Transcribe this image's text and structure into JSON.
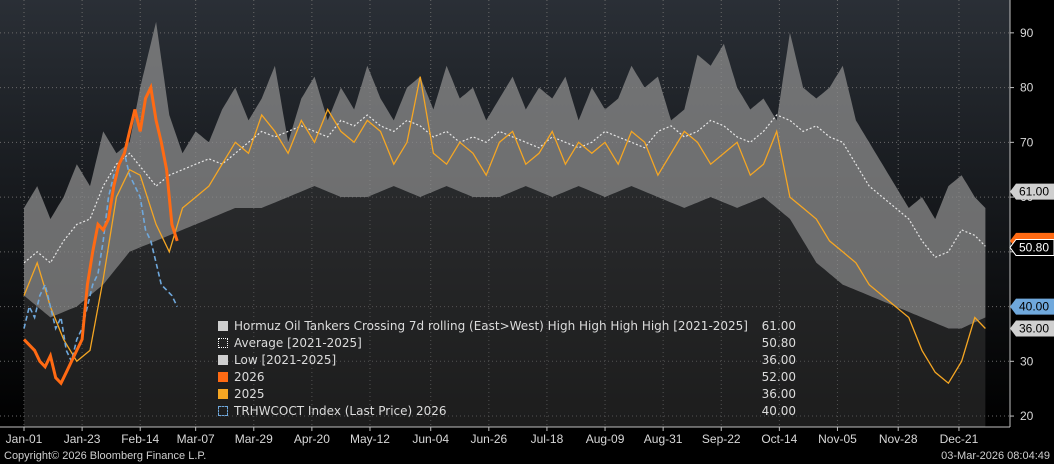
{
  "chart_data": {
    "type": "area",
    "title": "Hormuz Oil Tankers Crossing 7d rolling (East>West) High High High High [2021-2025]",
    "ylim": [
      18,
      96
    ],
    "y_ticks": [
      20,
      30,
      40,
      50,
      60,
      70,
      80,
      90
    ],
    "y_axis_position": "right",
    "x_days": 365,
    "x_ticks": [
      {
        "label": "Jan-01",
        "day": 0
      },
      {
        "label": "Jan-23",
        "day": 22
      },
      {
        "label": "Feb-14",
        "day": 44
      },
      {
        "label": "Mar-07",
        "day": 65
      },
      {
        "label": "Mar-29",
        "day": 87
      },
      {
        "label": "Apr-20",
        "day": 109
      },
      {
        "label": "May-12",
        "day": 131
      },
      {
        "label": "Jun-04",
        "day": 154
      },
      {
        "label": "Jun-26",
        "day": 176
      },
      {
        "label": "Jul-18",
        "day": 198
      },
      {
        "label": "Aug-09",
        "day": 220
      },
      {
        "label": "Aug-31",
        "day": 242
      },
      {
        "label": "Sep-22",
        "day": 264
      },
      {
        "label": "Oct-14",
        "day": 286
      },
      {
        "label": "Nov-05",
        "day": 308
      },
      {
        "label": "Nov-28",
        "day": 331
      },
      {
        "label": "Dec-21",
        "day": 354
      }
    ],
    "grid": true,
    "legend_position": "bottom-center",
    "series": [
      {
        "name": "Hormuz Oil Tankers Crossing 7d rolling (East>West) High High High High [2021-2025]",
        "role": "high",
        "color": "#8c8c8c",
        "x": [
          0,
          5,
          10,
          15,
          20,
          25,
          30,
          35,
          40,
          44,
          50,
          55,
          60,
          65,
          70,
          75,
          80,
          85,
          90,
          95,
          100,
          105,
          110,
          115,
          120,
          125,
          130,
          135,
          140,
          145,
          150,
          155,
          160,
          165,
          170,
          175,
          180,
          185,
          190,
          195,
          200,
          205,
          210,
          215,
          220,
          225,
          230,
          235,
          240,
          245,
          250,
          255,
          260,
          265,
          270,
          275,
          280,
          285,
          290,
          295,
          300,
          305,
          310,
          315,
          320,
          325,
          330,
          335,
          340,
          345,
          350,
          355,
          360,
          364
        ],
        "values": [
          58,
          62,
          56,
          60,
          66,
          62,
          72,
          68,
          70,
          80,
          92,
          75,
          68,
          72,
          70,
          76,
          80,
          74,
          78,
          84,
          70,
          78,
          82,
          74,
          80,
          76,
          84,
          78,
          74,
          80,
          82,
          76,
          84,
          78,
          80,
          74,
          78,
          82,
          76,
          80,
          78,
          82,
          74,
          80,
          76,
          78,
          84,
          80,
          82,
          74,
          76,
          86,
          84,
          88,
          80,
          76,
          78,
          74,
          90,
          80,
          78,
          80,
          84,
          74,
          70,
          66,
          62,
          58,
          60,
          56,
          62,
          64,
          60,
          58
        ]
      },
      {
        "name": "Low  [2021-2025]",
        "role": "low",
        "color": "#3a3a3a",
        "x": [
          0,
          10,
          20,
          30,
          40,
          50,
          60,
          70,
          80,
          90,
          100,
          110,
          120,
          130,
          140,
          150,
          160,
          170,
          180,
          190,
          200,
          210,
          220,
          230,
          240,
          250,
          260,
          270,
          280,
          290,
          300,
          310,
          320,
          330,
          340,
          350,
          355,
          364
        ],
        "values": [
          42,
          38,
          40,
          44,
          50,
          52,
          54,
          56,
          58,
          58,
          60,
          62,
          60,
          60,
          62,
          60,
          62,
          60,
          60,
          62,
          60,
          62,
          60,
          62,
          60,
          58,
          60,
          58,
          60,
          56,
          48,
          44,
          42,
          40,
          38,
          36,
          36,
          38
        ],
        "last_value": 36.0
      },
      {
        "name": "Average  [2021-2025]",
        "role": "average",
        "color": "#e6e6e6",
        "x": [
          0,
          5,
          10,
          15,
          20,
          25,
          30,
          35,
          40,
          45,
          50,
          55,
          60,
          65,
          70,
          75,
          80,
          85,
          90,
          95,
          100,
          105,
          110,
          115,
          120,
          125,
          130,
          135,
          140,
          145,
          150,
          155,
          160,
          165,
          170,
          175,
          180,
          185,
          190,
          195,
          200,
          205,
          210,
          215,
          220,
          225,
          230,
          235,
          240,
          245,
          250,
          255,
          260,
          265,
          270,
          275,
          280,
          285,
          290,
          295,
          300,
          305,
          310,
          315,
          320,
          325,
          330,
          335,
          340,
          345,
          350,
          355,
          360,
          364
        ],
        "values": [
          48,
          50,
          48,
          52,
          55,
          56,
          62,
          66,
          68,
          65,
          62,
          64,
          65,
          66,
          67,
          66,
          68,
          70,
          72,
          71,
          72,
          73,
          72,
          71,
          74,
          73,
          75,
          73,
          72,
          74,
          73,
          71,
          72,
          70,
          71,
          70,
          72,
          71,
          70,
          69,
          71,
          70,
          69,
          70,
          72,
          71,
          70,
          69,
          72,
          73,
          71,
          72,
          74,
          73,
          71,
          70,
          72,
          75,
          74,
          72,
          73,
          71,
          70,
          66,
          62,
          60,
          58,
          56,
          52,
          49,
          50,
          54,
          53,
          51
        ],
        "last_value": 50.8
      },
      {
        "name": "2026",
        "role": "current",
        "color": "#ff6a13",
        "x": [
          0,
          2,
          4,
          6,
          8,
          10,
          12,
          14,
          16,
          18,
          20,
          22,
          24,
          26,
          28,
          30,
          32,
          34,
          36,
          38,
          40,
          42,
          44,
          46,
          48,
          50,
          52,
          54,
          56,
          58
        ],
        "values": [
          34,
          33,
          32,
          30,
          29,
          31,
          27,
          26,
          28,
          30,
          32,
          34,
          44,
          50,
          55,
          54,
          56,
          62,
          66,
          68,
          72,
          76,
          72,
          78,
          80,
          74,
          70,
          65,
          55,
          52
        ],
        "last_value": 52.0
      },
      {
        "name": "2025",
        "role": "prior",
        "color": "#f5a623",
        "x": [
          0,
          5,
          10,
          15,
          20,
          25,
          30,
          35,
          40,
          44,
          50,
          55,
          60,
          65,
          70,
          75,
          80,
          85,
          90,
          95,
          100,
          105,
          110,
          115,
          120,
          125,
          130,
          135,
          140,
          145,
          150,
          155,
          160,
          165,
          170,
          175,
          180,
          185,
          190,
          195,
          200,
          205,
          210,
          215,
          220,
          225,
          230,
          235,
          240,
          245,
          250,
          255,
          260,
          265,
          270,
          275,
          280,
          285,
          290,
          295,
          300,
          305,
          310,
          315,
          320,
          325,
          330,
          335,
          340,
          345,
          350,
          355,
          360,
          364
        ],
        "values": [
          42,
          48,
          40,
          34,
          30,
          32,
          45,
          60,
          65,
          64,
          55,
          50,
          58,
          60,
          62,
          66,
          70,
          68,
          75,
          72,
          68,
          74,
          70,
          76,
          72,
          70,
          74,
          72,
          66,
          70,
          82,
          68,
          66,
          70,
          68,
          64,
          70,
          72,
          66,
          68,
          72,
          66,
          70,
          68,
          70,
          66,
          72,
          70,
          64,
          68,
          72,
          70,
          66,
          68,
          70,
          64,
          66,
          72,
          60,
          58,
          56,
          52,
          50,
          48,
          44,
          42,
          40,
          38,
          32,
          28,
          26,
          30,
          38,
          36
        ],
        "last_value": 36.0
      },
      {
        "name": "TRHWCOCT Index (Last Price) 2026",
        "role": "index",
        "color": "#6fa8dc",
        "x": [
          0,
          2,
          4,
          6,
          8,
          10,
          12,
          14,
          16,
          18,
          20,
          22,
          24,
          26,
          28,
          30,
          32,
          34,
          36,
          38,
          40,
          42,
          44,
          46,
          48,
          50,
          52,
          54,
          56,
          58
        ],
        "values": [
          36,
          40,
          38,
          42,
          44,
          40,
          36,
          38,
          32,
          30,
          34,
          36,
          40,
          44,
          46,
          52,
          60,
          64,
          66,
          68,
          64,
          62,
          60,
          54,
          52,
          48,
          44,
          43,
          42,
          40
        ],
        "last_value": 40.0
      }
    ]
  },
  "legend": [
    {
      "label": "Hormuz Oil Tankers Crossing 7d rolling (East>West) High High High High [2021-2025]",
      "value": "61.00",
      "swatch": "#cfcfcf",
      "style": "solid"
    },
    {
      "label": "Average  [2021-2025]",
      "value": "50.80",
      "swatch": "#ffffff",
      "style": "dotted"
    },
    {
      "label": "Low  [2021-2025]",
      "value": "36.00",
      "swatch": "#cfcfcf",
      "style": "solid"
    },
    {
      "label": "2026",
      "value": "52.00",
      "swatch": "#ff6a13",
      "style": "solid"
    },
    {
      "label": "2025",
      "value": "36.00",
      "swatch": "#f5a623",
      "style": "solid"
    },
    {
      "label": "TRHWCOCT Index (Last Price) 2026",
      "value": "40.00",
      "swatch": "#6fa8dc",
      "style": "dashed"
    }
  ],
  "last_value_tags": [
    {
      "value": 61.0,
      "text": "61.00",
      "bg": "#cfcfcf",
      "fg": "#000000"
    },
    {
      "value": 52.0,
      "text": "",
      "bg": "#ff6a13",
      "fg": "#000000"
    },
    {
      "value": 50.8,
      "text": "50.80",
      "bg": "#000000",
      "fg": "#ffffff",
      "border": "#ffffff"
    },
    {
      "value": 40.0,
      "text": "40.00",
      "bg": "#6fa8dc",
      "fg": "#000000"
    },
    {
      "value": 36.0,
      "text": "36.00",
      "bg": "#cfcfcf",
      "fg": "#000000"
    }
  ],
  "footer": {
    "copyright": "Copyright© 2026 Bloomberg Finance L.P.",
    "timestamp": "03-Mar-2026 08:04:49"
  }
}
